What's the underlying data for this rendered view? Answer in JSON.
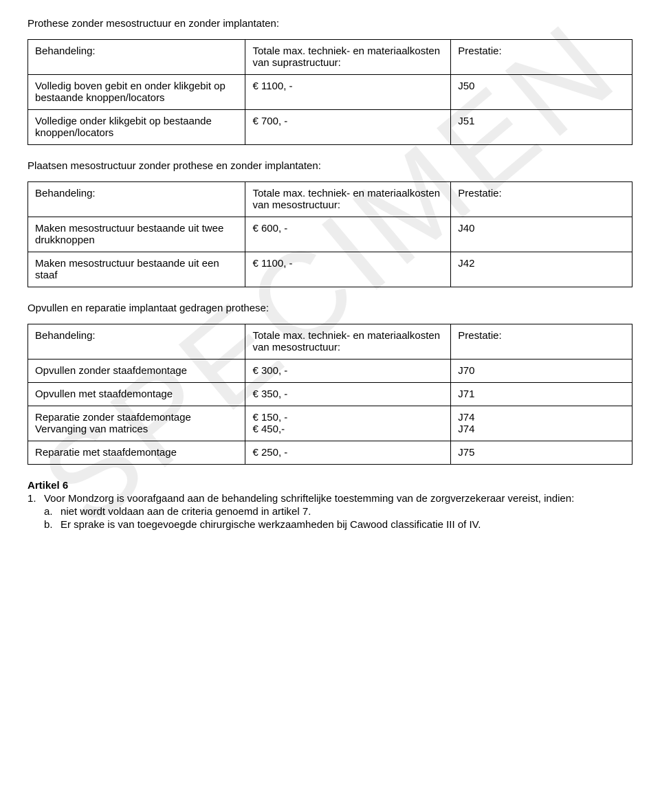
{
  "watermark": "SPECIMEN",
  "section1": {
    "title": "Prothese zonder mesostructuur en zonder implantaten:",
    "header": {
      "c1": "Behandeling:",
      "c2": "Totale max. techniek- en materiaalkosten van suprastructuur:",
      "c3": "Prestatie:"
    },
    "rows": [
      {
        "c1": "Volledig boven gebit en onder klikgebit op bestaande knoppen/locators",
        "c2": "€ 1100, -",
        "c3": "J50"
      },
      {
        "c1": "Volledige onder klikgebit op bestaande knoppen/locators",
        "c2": "€ 700, -",
        "c3": "J51"
      }
    ]
  },
  "section2": {
    "title": "Plaatsen mesostructuur zonder prothese en zonder implantaten:",
    "header": {
      "c1": "Behandeling:",
      "c2": "Totale max. techniek- en materiaalkosten van mesostructuur:",
      "c3": "Prestatie:"
    },
    "rows": [
      {
        "c1": "Maken mesostructuur bestaande uit twee drukknoppen",
        "c2": "€ 600, -",
        "c3": "J40"
      },
      {
        "c1": "Maken mesostructuur bestaande uit een staaf",
        "c2": "€ 1100, -",
        "c3": "J42"
      }
    ]
  },
  "section3": {
    "title": "Opvullen en reparatie implantaat gedragen prothese:",
    "header": {
      "c1": "Behandeling:",
      "c2": "Totale max. techniek- en materiaalkosten van mesostructuur:",
      "c3": "Prestatie:"
    },
    "rows": [
      {
        "c1": "Opvullen zonder staafdemontage",
        "c2": "€ 300, -",
        "c3": "J70"
      },
      {
        "c1": "Opvullen met staafdemontage",
        "c2": "€ 350, -",
        "c3": "J71"
      },
      {
        "c1": "Reparatie zonder staafdemontage\nVervanging van matrices",
        "c2": "€ 150, -\n€ 450,-",
        "c3": "J74\nJ74"
      },
      {
        "c1": "Reparatie met staafdemontage",
        "c2": "€ 250, -",
        "c3": "J75"
      }
    ]
  },
  "article": {
    "title": "Artikel 6",
    "item1_num": "1.",
    "item1_text": "Voor Mondzorg is voorafgaand aan de behandeling schriftelijke toestemming van de zorgverzekeraar vereist, indien:",
    "sub_a_num": "a.",
    "sub_a_text": "niet wordt voldaan aan de criteria genoemd in artikel 7.",
    "sub_b_num": "b.",
    "sub_b_text": "Er sprake is van toegevoegde chirurgische werkzaamheden bij Cawood classificatie III of IV."
  }
}
